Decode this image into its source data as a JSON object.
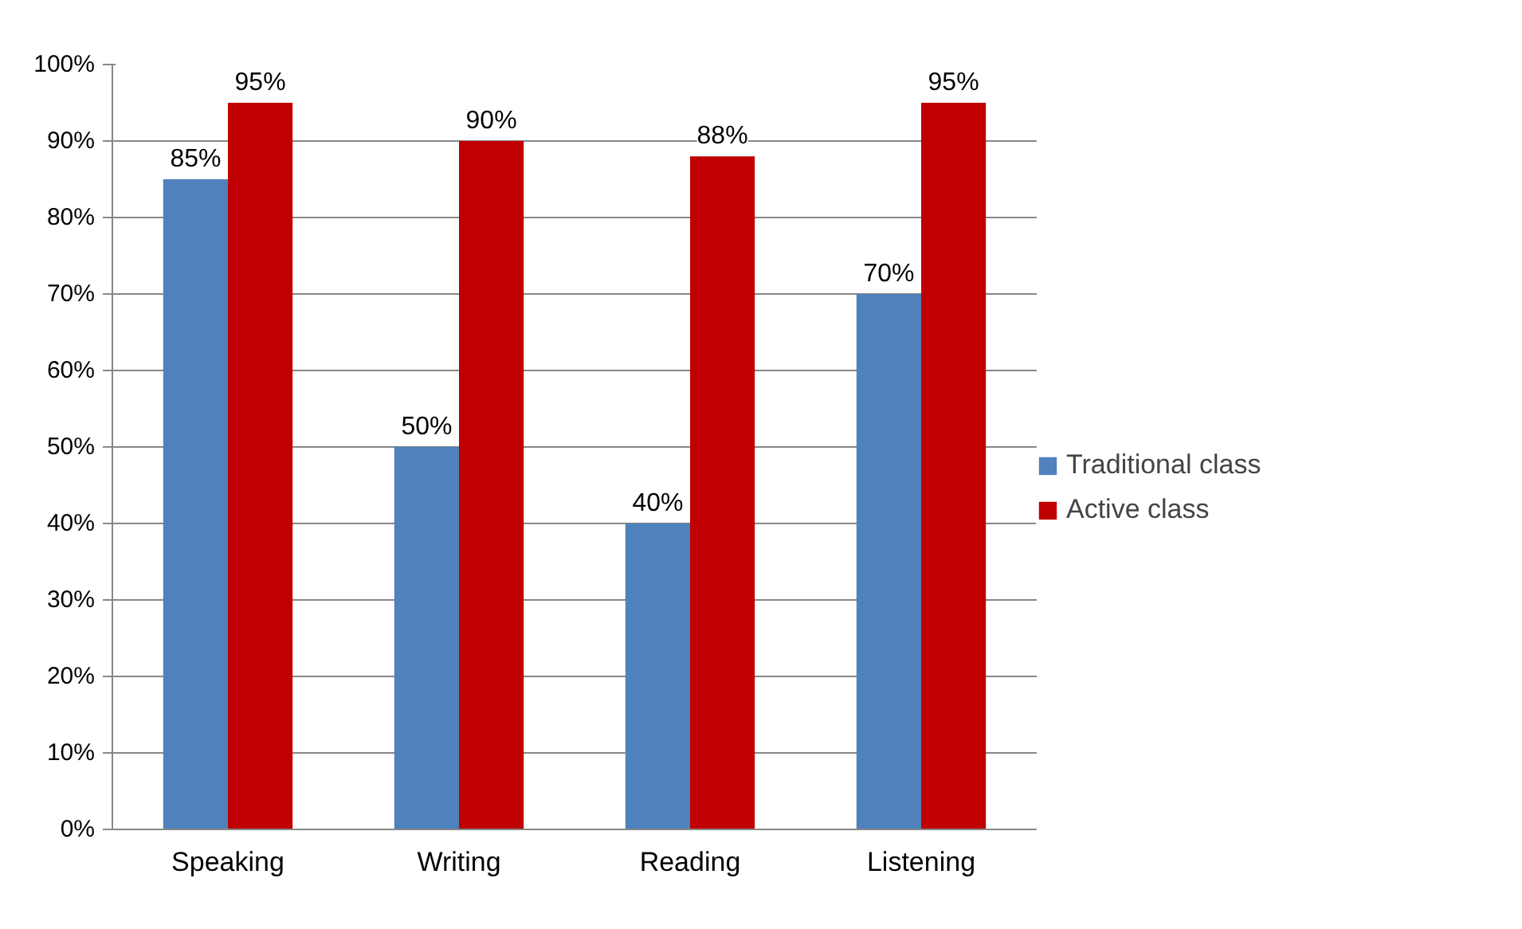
{
  "chart_data": {
    "type": "bar",
    "categories": [
      "Speaking",
      "Writing",
      "Reading",
      "Listening"
    ],
    "series": [
      {
        "name": "Traditional class",
        "color": "#4f81bd",
        "values": [
          85,
          50,
          40,
          70
        ],
        "value_labels": [
          "85%",
          "50%",
          "40%",
          "70%"
        ]
      },
      {
        "name": "Active class",
        "color": "#c00000",
        "values": [
          95,
          90,
          88,
          95
        ],
        "value_labels": [
          "95%",
          "90%",
          "88%",
          "95%"
        ]
      }
    ],
    "ylim": [
      0,
      100
    ],
    "yticks": [
      {
        "value": 0,
        "label": "0%"
      },
      {
        "value": 10,
        "label": "10%"
      },
      {
        "value": 20,
        "label": "20%"
      },
      {
        "value": 30,
        "label": "30%"
      },
      {
        "value": 40,
        "label": "40%"
      },
      {
        "value": 50,
        "label": "50%"
      },
      {
        "value": 60,
        "label": "60%"
      },
      {
        "value": 70,
        "label": "70%"
      },
      {
        "value": 80,
        "label": "80%"
      },
      {
        "value": 90,
        "label": "90%"
      },
      {
        "value": 100,
        "label": "100%"
      }
    ],
    "grid": "y",
    "legend": "right"
  }
}
